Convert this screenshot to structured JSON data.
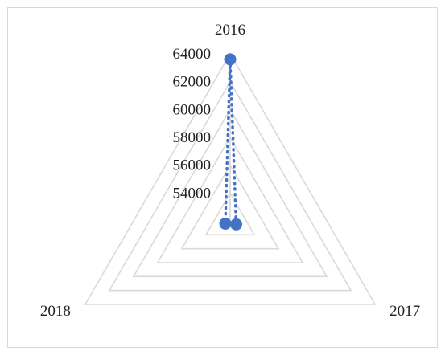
{
  "chart_data": {
    "type": "radar",
    "categories": [
      "2016",
      "2017",
      "2018"
    ],
    "series": [
      {
        "values": [
          63600,
          52500,
          52400
        ],
        "color": "#4472c4",
        "line_style": "dotted",
        "marker": "circle"
      }
    ],
    "radial_ticks": [
      "54000",
      "56000",
      "58000",
      "60000",
      "62000",
      "64000"
    ],
    "rlim": [
      52000,
      64000
    ],
    "tick_step": 2000,
    "gridline_color": "#d9d9d9",
    "grid": true,
    "legend": "none",
    "title": ""
  }
}
